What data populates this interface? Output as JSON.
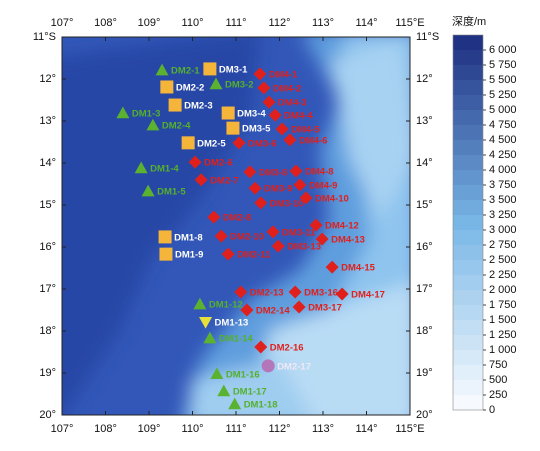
{
  "map": {
    "xlim": [
      107,
      115
    ],
    "ylim": [
      20,
      11
    ],
    "xticks": [
      {
        "value": 107,
        "label": "107°"
      },
      {
        "value": 108,
        "label": "108°"
      },
      {
        "value": 109,
        "label": "109°"
      },
      {
        "value": 110,
        "label": "110°"
      },
      {
        "value": 111,
        "label": "111°"
      },
      {
        "value": 112,
        "label": "112°"
      },
      {
        "value": 113,
        "label": "113°"
      },
      {
        "value": 114,
        "label": "114°"
      },
      {
        "value": 115,
        "label": "115°E"
      }
    ],
    "yticks": [
      {
        "value": 11,
        "label": "11°S"
      },
      {
        "value": 12,
        "label": "12°"
      },
      {
        "value": 13,
        "label": "13°"
      },
      {
        "value": 14,
        "label": "14°"
      },
      {
        "value": 15,
        "label": "15°"
      },
      {
        "value": 16,
        "label": "16°"
      },
      {
        "value": 17,
        "label": "17°"
      },
      {
        "value": 18,
        "label": "18°"
      },
      {
        "value": 19,
        "label": "19°"
      },
      {
        "value": 20,
        "label": "20°"
      }
    ],
    "marker_styles": {
      "triangle": {
        "fill": "#5bb231",
        "label_color": "#55b02c"
      },
      "square": {
        "fill": "#f5b43a",
        "label_color": "#ffffff"
      },
      "diamond": {
        "fill": "#e0201c",
        "label_color": "#e0201c"
      },
      "down-triangle": {
        "fill": "#e8e03a",
        "label_color": "#ffffff"
      },
      "circle": {
        "fill": "#b767b0",
        "label_color": "#f0e8f4"
      }
    },
    "stations": [
      {
        "label": "DM2-1",
        "lon": 109.3,
        "lat": 11.79,
        "marker": "triangle"
      },
      {
        "label": "DM3-2",
        "lon": 110.54,
        "lat": 12.12,
        "marker": "triangle"
      },
      {
        "label": "DM1-3",
        "lon": 108.4,
        "lat": 12.81,
        "marker": "triangle"
      },
      {
        "label": "DM2-4",
        "lon": 109.09,
        "lat": 13.1,
        "marker": "triangle"
      },
      {
        "label": "DM1-4",
        "lon": 108.82,
        "lat": 14.12,
        "marker": "triangle"
      },
      {
        "label": "DM1-5",
        "lon": 108.98,
        "lat": 14.67,
        "marker": "triangle"
      },
      {
        "label": "DM1-12",
        "lon": 110.17,
        "lat": 17.36,
        "marker": "triangle"
      },
      {
        "label": "DM1-14",
        "lon": 110.4,
        "lat": 18.17,
        "marker": "triangle"
      },
      {
        "label": "DM1-16",
        "lon": 110.56,
        "lat": 19.02,
        "marker": "triangle"
      },
      {
        "label": "DM1-17",
        "lon": 110.72,
        "lat": 19.43,
        "marker": "triangle"
      },
      {
        "label": "DM1-18",
        "lon": 110.97,
        "lat": 19.74,
        "marker": "triangle"
      },
      {
        "label": "DM1-13",
        "lon": 110.3,
        "lat": 17.79,
        "marker": "down-triangle"
      },
      {
        "label": "DM3-1",
        "lon": 110.4,
        "lat": 11.76,
        "marker": "square"
      },
      {
        "label": "DM2-2",
        "lon": 109.41,
        "lat": 12.19,
        "marker": "square"
      },
      {
        "label": "DM2-3",
        "lon": 109.6,
        "lat": 12.62,
        "marker": "square"
      },
      {
        "label": "DM3-4",
        "lon": 110.82,
        "lat": 12.81,
        "marker": "square"
      },
      {
        "label": "DM3-5",
        "lon": 110.93,
        "lat": 13.17,
        "marker": "square"
      },
      {
        "label": "DM2-5",
        "lon": 109.9,
        "lat": 13.52,
        "marker": "square"
      },
      {
        "label": "DM1-8",
        "lon": 109.37,
        "lat": 15.76,
        "marker": "square"
      },
      {
        "label": "DM1-9",
        "lon": 109.39,
        "lat": 16.17,
        "marker": "square"
      },
      {
        "label": "DM4-1",
        "lon": 111.55,
        "lat": 11.88,
        "marker": "diamond"
      },
      {
        "label": "DM4-2",
        "lon": 111.64,
        "lat": 12.21,
        "marker": "diamond"
      },
      {
        "label": "DM4-3",
        "lon": 111.76,
        "lat": 12.55,
        "marker": "diamond"
      },
      {
        "label": "DM4-4",
        "lon": 111.9,
        "lat": 12.86,
        "marker": "diamond"
      },
      {
        "label": "DM4-5",
        "lon": 112.06,
        "lat": 13.19,
        "marker": "diamond"
      },
      {
        "label": "DM4-6",
        "lon": 112.24,
        "lat": 13.45,
        "marker": "diamond"
      },
      {
        "label": "DM3-6",
        "lon": 111.07,
        "lat": 13.52,
        "marker": "diamond"
      },
      {
        "label": "DM2-6",
        "lon": 110.06,
        "lat": 13.98,
        "marker": "diamond"
      },
      {
        "label": "DM2-7",
        "lon": 110.2,
        "lat": 14.4,
        "marker": "diamond"
      },
      {
        "label": "DM3-8",
        "lon": 111.32,
        "lat": 14.21,
        "marker": "diamond"
      },
      {
        "label": "DM4-8",
        "lon": 112.38,
        "lat": 14.19,
        "marker": "diamond"
      },
      {
        "label": "DM3-9",
        "lon": 111.44,
        "lat": 14.6,
        "marker": "diamond"
      },
      {
        "label": "DM4-9",
        "lon": 112.47,
        "lat": 14.52,
        "marker": "diamond"
      },
      {
        "label": "DM4-10",
        "lon": 112.61,
        "lat": 14.83,
        "marker": "diamond"
      },
      {
        "label": "DM3-10",
        "lon": 111.57,
        "lat": 14.95,
        "marker": "diamond"
      },
      {
        "label": "DM2-8",
        "lon": 110.49,
        "lat": 15.29,
        "marker": "diamond"
      },
      {
        "label": "DM4-12",
        "lon": 112.84,
        "lat": 15.48,
        "marker": "diamond"
      },
      {
        "label": "DM2-10",
        "lon": 110.66,
        "lat": 15.74,
        "marker": "diamond"
      },
      {
        "label": "DM3-11",
        "lon": 111.85,
        "lat": 15.64,
        "marker": "diamond"
      },
      {
        "label": "DM4-13",
        "lon": 112.98,
        "lat": 15.81,
        "marker": "diamond"
      },
      {
        "label": "DM3-13",
        "lon": 111.97,
        "lat": 15.98,
        "marker": "diamond"
      },
      {
        "label": "DM2-11",
        "lon": 110.82,
        "lat": 16.17,
        "marker": "diamond"
      },
      {
        "label": "DM4-15",
        "lon": 113.21,
        "lat": 16.48,
        "marker": "diamond"
      },
      {
        "label": "DM2-13",
        "lon": 111.11,
        "lat": 17.07,
        "marker": "diamond"
      },
      {
        "label": "DM3-16",
        "lon": 112.36,
        "lat": 17.07,
        "marker": "diamond"
      },
      {
        "label": "DM4-17",
        "lon": 113.44,
        "lat": 17.12,
        "marker": "diamond"
      },
      {
        "label": "DM2-14",
        "lon": 111.25,
        "lat": 17.5,
        "marker": "diamond"
      },
      {
        "label": "DM3-17",
        "lon": 112.45,
        "lat": 17.43,
        "marker": "diamond"
      },
      {
        "label": "DM2-16",
        "lon": 111.57,
        "lat": 18.38,
        "marker": "diamond"
      },
      {
        "label": "DM2-17",
        "lon": 111.74,
        "lat": 18.83,
        "marker": "circle"
      }
    ],
    "colorbar": {
      "title": "深度/m",
      "clim": [
        0,
        6250
      ],
      "colormap": [
        "#fbfdff",
        "#78b6e6",
        "#1c2c80"
      ],
      "ticks": [
        0,
        250,
        500,
        750,
        {
          "value": 1000,
          "label": "1 000"
        },
        {
          "value": 1250,
          "label": "1 250"
        },
        {
          "value": 1500,
          "label": "1 500"
        },
        {
          "value": 1750,
          "label": "1 750"
        },
        {
          "value": 2000,
          "label": "2 000"
        },
        {
          "value": 2250,
          "label": "2 250"
        },
        {
          "value": 2500,
          "label": "2 500"
        },
        {
          "value": 2750,
          "label": "2 750"
        },
        {
          "value": 3000,
          "label": "3 000"
        },
        {
          "value": 3250,
          "label": "3 250"
        },
        {
          "value": 3500,
          "label": "3 500"
        },
        {
          "value": 3750,
          "label": "3 750"
        },
        {
          "value": 4000,
          "label": "4 000"
        },
        {
          "value": 4250,
          "label": "4 250"
        },
        {
          "value": 4500,
          "label": "4 500"
        },
        {
          "value": 4750,
          "label": "4 750"
        },
        {
          "value": 5000,
          "label": "5 000"
        },
        {
          "value": 5250,
          "label": "5 250"
        },
        {
          "value": 5500,
          "label": "5 500"
        },
        {
          "value": 5750,
          "label": "5 750"
        },
        {
          "value": 6000,
          "label": "6 000"
        }
      ]
    }
  }
}
